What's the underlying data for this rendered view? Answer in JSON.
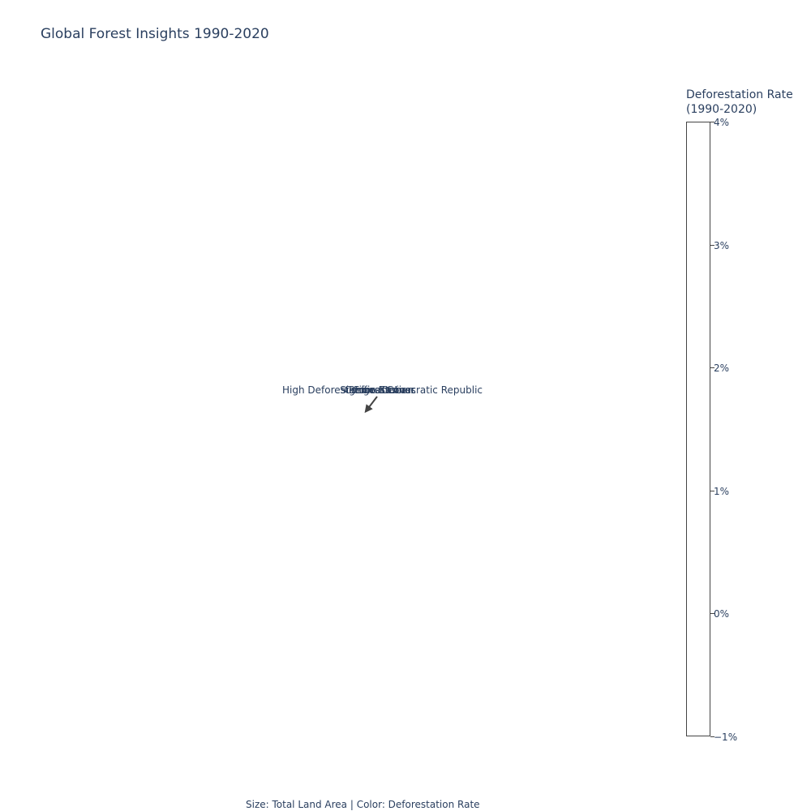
{
  "chart_data": {
    "type": "scatter",
    "title": "Global Forest Insights 1990-2020",
    "colorbar": {
      "title_lines": [
        "Deforestation Rate",
        "(1990-2020)"
      ],
      "range": [
        -1,
        4
      ],
      "ticks": [
        {
          "value": 4,
          "label": "4%"
        },
        {
          "value": 3,
          "label": "3%"
        },
        {
          "value": 2,
          "label": "2%"
        },
        {
          "value": 1,
          "label": "1%"
        },
        {
          "value": 0,
          "label": "0%"
        },
        {
          "value": -1,
          "label": "−1%"
        }
      ]
    },
    "annotations": [
      "High Deforestation",
      "Democratic Republic",
      "Congo Basin",
      "Significant Loss",
      "Reforestation",
      "Forest Cover"
    ],
    "footer": "Size: Total Land Area | Color: Deforestation Rate"
  },
  "colors": {
    "text": "#2a3f5f",
    "arrow": "#444444",
    "colorbar_border": "#444444"
  }
}
